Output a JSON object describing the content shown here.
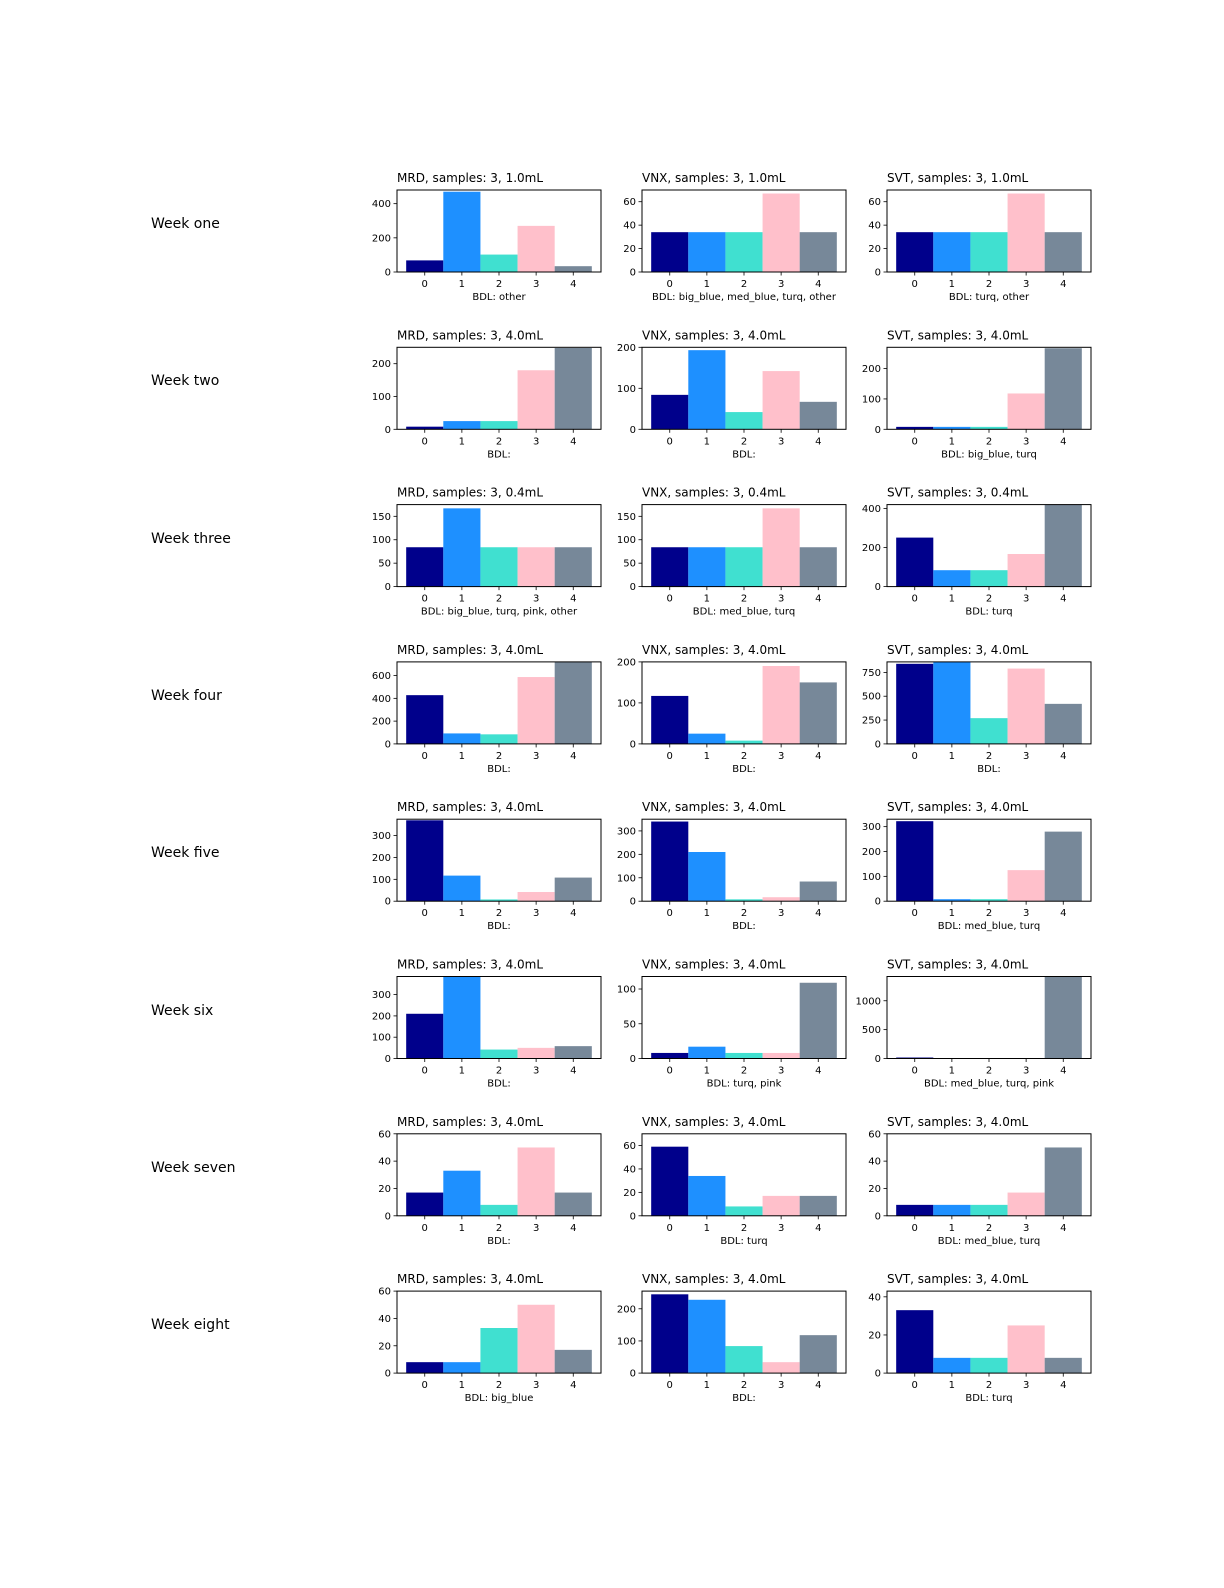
{
  "colors": [
    "#00008b",
    "#1e90ff",
    "#40e0d0",
    "#ffc0cb",
    "#778899"
  ],
  "chart_data": [
    {
      "week": "Week one",
      "type": "bar",
      "categories": [
        "0",
        "1",
        "2",
        "3",
        "4"
      ],
      "charts": [
        {
          "title": "MRD, samples: 3, 1.0mL",
          "xlabel": "BDL: other",
          "values": [
            68,
            470,
            102,
            270,
            34
          ],
          "ylim": [
            0,
            480
          ],
          "yticks": [
            0,
            200,
            400
          ]
        },
        {
          "title": "VNX, samples: 3, 1.0mL",
          "xlabel": "BDL: big_blue, med_blue, turq, other",
          "values": [
            34,
            34,
            34,
            67,
            34
          ],
          "ylim": [
            0,
            70
          ],
          "yticks": [
            0,
            20,
            40,
            60
          ]
        },
        {
          "title": "SVT, samples: 3, 1.0mL",
          "xlabel": "BDL: turq, other",
          "values": [
            34,
            34,
            34,
            67,
            34
          ],
          "ylim": [
            0,
            70
          ],
          "yticks": [
            0,
            20,
            40,
            60
          ]
        }
      ]
    },
    {
      "week": "Week two",
      "type": "bar",
      "categories": [
        "0",
        "1",
        "2",
        "3",
        "4"
      ],
      "charts": [
        {
          "title": "MRD, samples: 3, 4.0mL",
          "xlabel": "BDL:",
          "values": [
            8,
            25,
            25,
            180,
            248
          ],
          "ylim": [
            0,
            250
          ],
          "yticks": [
            0,
            100,
            200
          ]
        },
        {
          "title": "VNX, samples: 3, 4.0mL",
          "xlabel": "BDL:",
          "values": [
            84,
            193,
            42,
            142,
            67
          ],
          "ylim": [
            0,
            200
          ],
          "yticks": [
            0,
            100,
            200
          ]
        },
        {
          "title": "SVT, samples: 3, 4.0mL",
          "xlabel": "BDL: big_blue, turq",
          "values": [
            8,
            8,
            8,
            118,
            267
          ],
          "ylim": [
            0,
            270
          ],
          "yticks": [
            0,
            100,
            200
          ]
        }
      ]
    },
    {
      "week": "Week three",
      "type": "bar",
      "categories": [
        "0",
        "1",
        "2",
        "3",
        "4"
      ],
      "charts": [
        {
          "title": "MRD, samples: 3, 0.4mL",
          "xlabel": "BDL: big_blue, turq, pink, other",
          "values": [
            84,
            167,
            84,
            84,
            84
          ],
          "ylim": [
            0,
            175
          ],
          "yticks": [
            0,
            50,
            100,
            150
          ]
        },
        {
          "title": "VNX, samples: 3, 0.4mL",
          "xlabel": "BDL: med_blue, turq",
          "values": [
            84,
            84,
            84,
            167,
            84
          ],
          "ylim": [
            0,
            175
          ],
          "yticks": [
            0,
            50,
            100,
            150
          ]
        },
        {
          "title": "SVT, samples: 3, 0.4mL",
          "xlabel": "BDL: turq",
          "values": [
            251,
            84,
            84,
            167,
            418
          ],
          "ylim": [
            0,
            420
          ],
          "yticks": [
            0,
            200,
            400
          ]
        }
      ]
    },
    {
      "week": "Week four",
      "type": "bar",
      "categories": [
        "0",
        "1",
        "2",
        "3",
        "4"
      ],
      "charts": [
        {
          "title": "MRD, samples: 3, 4.0mL",
          "xlabel": "BDL:",
          "values": [
            428,
            92,
            84,
            587,
            720
          ],
          "ylim": [
            0,
            720
          ],
          "yticks": [
            0,
            200,
            400,
            600
          ]
        },
        {
          "title": "VNX, samples: 3, 4.0mL",
          "xlabel": "BDL:",
          "values": [
            117,
            25,
            8,
            190,
            150
          ],
          "ylim": [
            0,
            200
          ],
          "yticks": [
            0,
            100,
            200
          ]
        },
        {
          "title": "SVT, samples: 3, 4.0mL",
          "xlabel": "BDL:",
          "values": [
            840,
            860,
            270,
            790,
            420
          ],
          "ylim": [
            0,
            860
          ],
          "yticks": [
            0,
            250,
            500,
            750
          ]
        }
      ]
    },
    {
      "week": "Week five",
      "type": "bar",
      "categories": [
        "0",
        "1",
        "2",
        "3",
        "4"
      ],
      "charts": [
        {
          "title": "MRD, samples: 3, 4.0mL",
          "xlabel": "BDL:",
          "values": [
            370,
            117,
            8,
            42,
            108
          ],
          "ylim": [
            0,
            375
          ],
          "yticks": [
            0,
            100,
            200,
            300
          ]
        },
        {
          "title": "VNX, samples: 3, 4.0mL",
          "xlabel": "BDL:",
          "values": [
            340,
            210,
            8,
            17,
            84
          ],
          "ylim": [
            0,
            350
          ],
          "yticks": [
            0,
            100,
            200,
            300
          ]
        },
        {
          "title": "SVT, samples: 3, 4.0mL",
          "xlabel": "BDL: med_blue, turq",
          "values": [
            322,
            8,
            8,
            125,
            280
          ],
          "ylim": [
            0,
            330
          ],
          "yticks": [
            0,
            100,
            200,
            300
          ]
        }
      ]
    },
    {
      "week": "Week six",
      "type": "bar",
      "categories": [
        "0",
        "1",
        "2",
        "3",
        "4"
      ],
      "charts": [
        {
          "title": "MRD, samples: 3, 4.0mL",
          "xlabel": "BDL:",
          "values": [
            210,
            383,
            42,
            50,
            58
          ],
          "ylim": [
            0,
            385
          ],
          "yticks": [
            0,
            100,
            200,
            300
          ]
        },
        {
          "title": "VNX, samples: 3, 4.0mL",
          "xlabel": "BDL: turq, pink",
          "values": [
            8,
            17,
            8,
            8,
            109
          ],
          "ylim": [
            0,
            118
          ],
          "yticks": [
            0,
            50,
            100
          ]
        },
        {
          "title": "SVT, samples: 3, 4.0mL",
          "xlabel": "BDL: med_blue, turq, pink",
          "values": [
            17,
            0,
            0,
            0,
            1420
          ],
          "ylim": [
            0,
            1420
          ],
          "yticks": [
            0,
            500,
            1000
          ]
        }
      ]
    },
    {
      "week": "Week seven",
      "type": "bar",
      "categories": [
        "0",
        "1",
        "2",
        "3",
        "4"
      ],
      "charts": [
        {
          "title": "MRD, samples: 3, 4.0mL",
          "xlabel": "BDL:",
          "values": [
            17,
            33,
            8,
            50,
            17
          ],
          "ylim": [
            0,
            60
          ],
          "yticks": [
            0,
            20,
            40,
            60
          ]
        },
        {
          "title": "VNX, samples: 3, 4.0mL",
          "xlabel": "BDL: turq",
          "values": [
            59,
            34,
            8,
            17,
            17
          ],
          "ylim": [
            0,
            70
          ],
          "yticks": [
            0,
            20,
            40,
            60
          ]
        },
        {
          "title": "SVT, samples: 3, 4.0mL",
          "xlabel": "BDL: med_blue, turq",
          "values": [
            8,
            8,
            8,
            17,
            50
          ],
          "ylim": [
            0,
            60
          ],
          "yticks": [
            0,
            20,
            40,
            60
          ]
        }
      ]
    },
    {
      "week": "Week eight",
      "type": "bar",
      "categories": [
        "0",
        "1",
        "2",
        "3",
        "4"
      ],
      "charts": [
        {
          "title": "MRD, samples: 3, 4.0mL",
          "xlabel": "BDL: big_blue",
          "values": [
            8,
            8,
            33,
            50,
            17
          ],
          "ylim": [
            0,
            60
          ],
          "yticks": [
            0,
            20,
            40,
            60
          ]
        },
        {
          "title": "VNX, samples: 3, 4.0mL",
          "xlabel": "BDL:",
          "values": [
            245,
            228,
            84,
            34,
            118
          ],
          "ylim": [
            0,
            255
          ],
          "yticks": [
            0,
            100,
            200
          ]
        },
        {
          "title": "SVT, samples: 3, 4.0mL",
          "xlabel": "BDL: turq",
          "values": [
            33,
            8,
            8,
            25,
            8
          ],
          "ylim": [
            0,
            43
          ],
          "yticks": [
            0,
            20,
            40
          ]
        }
      ]
    }
  ]
}
